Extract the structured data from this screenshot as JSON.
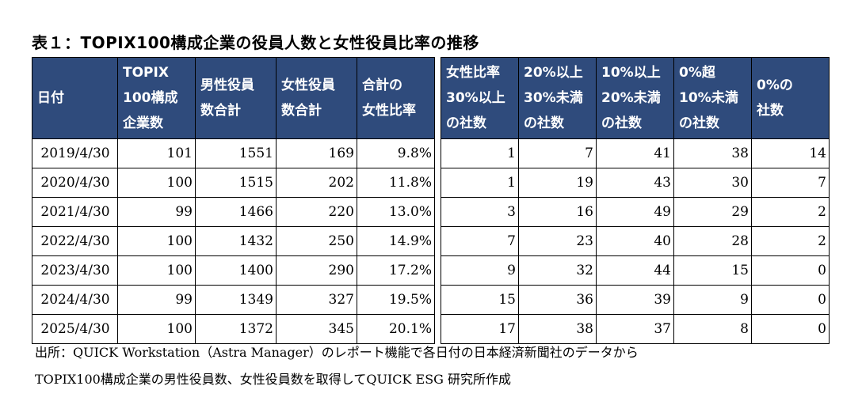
{
  "title": "表１：TOPIX100構成企業の役員人数と女性役員比率の推移",
  "left_headers": [
    [
      "日付"
    ],
    [
      "TOPIX",
      "100構成",
      "企業数"
    ],
    [
      "男性役員",
      "数合計"
    ],
    [
      "女性役員",
      "数合計"
    ],
    [
      "合計の",
      "女性比率"
    ]
  ],
  "right_headers": [
    [
      "女性比率",
      "30%以上",
      "の社数"
    ],
    [
      "20%以上",
      "30%未満",
      "の社数"
    ],
    [
      "10%以上",
      "20%未満",
      "の社数"
    ],
    [
      "0%超",
      "10%未満",
      "の社数"
    ],
    [
      "0%の",
      "社数"
    ]
  ],
  "rows": [
    {
      "date": "2019/4/30",
      "companies": "101",
      "male": "1551",
      "female": "169",
      "ratio": "9.8%",
      "r30": "1",
      "r20": "7",
      "r10": "41",
      "r0": "38",
      "zero": "14"
    },
    {
      "date": "2020/4/30",
      "companies": "100",
      "male": "1515",
      "female": "202",
      "ratio": "11.8%",
      "r30": "1",
      "r20": "19",
      "r10": "43",
      "r0": "30",
      "zero": "7"
    },
    {
      "date": "2021/4/30",
      "companies": "99",
      "male": "1466",
      "female": "220",
      "ratio": "13.0%",
      "r30": "3",
      "r20": "16",
      "r10": "49",
      "r0": "29",
      "zero": "2"
    },
    {
      "date": "2022/4/30",
      "companies": "100",
      "male": "1432",
      "female": "250",
      "ratio": "14.9%",
      "r30": "7",
      "r20": "23",
      "r10": "40",
      "r0": "28",
      "zero": "2"
    },
    {
      "date": "2023/4/30",
      "companies": "100",
      "male": "1400",
      "female": "290",
      "ratio": "17.2%",
      "r30": "9",
      "r20": "32",
      "r10": "44",
      "r0": "15",
      "zero": "0"
    },
    {
      "date": "2024/4/30",
      "companies": "99",
      "male": "1349",
      "female": "327",
      "ratio": "19.5%",
      "r30": "15",
      "r20": "36",
      "r10": "39",
      "r0": "9",
      "zero": "0"
    },
    {
      "date": "2025/4/30",
      "companies": "100",
      "male": "1372",
      "female": "345",
      "ratio": "20.1%",
      "r30": "17",
      "r20": "38",
      "r10": "37",
      "r0": "8",
      "zero": "0"
    }
  ],
  "source_line1": "出所：QUICK Workstation（Astra Manager）のレポート機能で各日付の日本経済新聞社のデータから",
  "source_line2": "TOPIX100構成企業の男性役員数、女性役員数を取得してQUICK ESG 研究所作成",
  "colors": {
    "header_bg": "#2F4B7C",
    "header_text": "#FFFFFF"
  }
}
